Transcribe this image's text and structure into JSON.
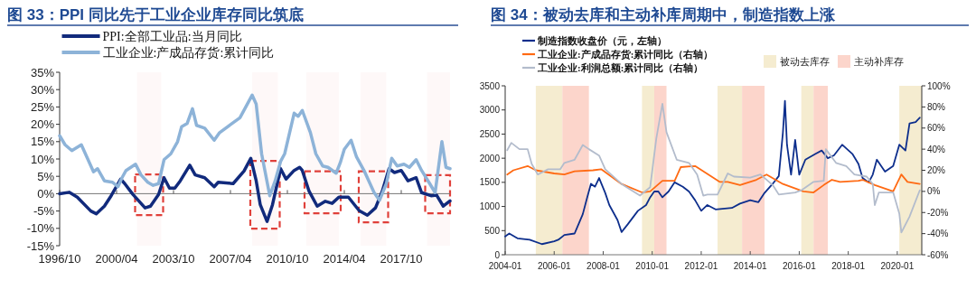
{
  "chart_data": [
    {
      "type": "line",
      "title": "图 33：PPI 同比先于工业企业库存同比筑底",
      "legend": "top",
      "xlim": [
        "1996-10",
        "2020-10"
      ],
      "xticks": [
        {
          "value": "1996-10",
          "label": "1996/10"
        },
        {
          "value": "2000-04",
          "label": "2000/04"
        },
        {
          "value": "2003-10",
          "label": "2003/10"
        },
        {
          "value": "2007-04",
          "label": "2007/04"
        },
        {
          "value": "2010-10",
          "label": "2010/10"
        },
        {
          "value": "2014-04",
          "label": "2014/04"
        },
        {
          "value": "2017-10",
          "label": "2017/10"
        }
      ],
      "ylim": [
        -15,
        35
      ],
      "yticks": [
        {
          "value": -15,
          "label": "-15%"
        },
        {
          "value": -10,
          "label": "-10%"
        },
        {
          "value": -5,
          "label": "-5%"
        },
        {
          "value": 0,
          "label": "0%"
        },
        {
          "value": 5,
          "label": "5%"
        },
        {
          "value": 10,
          "label": "10%"
        },
        {
          "value": 15,
          "label": "15%"
        },
        {
          "value": 20,
          "label": "20%"
        },
        {
          "value": 25,
          "label": "25%"
        },
        {
          "value": 30,
          "label": "30%"
        },
        {
          "value": 35,
          "label": "35%"
        }
      ],
      "series": [
        {
          "name": "PPI:全部工业品:当月同比",
          "color": "#112a7c",
          "x": [
            "1996-10",
            "1997-05",
            "1997-11",
            "1998-09",
            "1999-01",
            "1999-07",
            "1999-12",
            "2000-07",
            "2000-10",
            "2001-04",
            "2002-01",
            "2002-05",
            "2002-11",
            "2003-03",
            "2003-07",
            "2003-11",
            "2004-03",
            "2004-10",
            "2005-02",
            "2005-09",
            "2006-04",
            "2006-07",
            "2007-06",
            "2008-02",
            "2008-07",
            "2008-11",
            "2009-02",
            "2009-07",
            "2009-11",
            "2010-05",
            "2010-09",
            "2011-03",
            "2011-07",
            "2011-09",
            "2012-02",
            "2012-08",
            "2013-02",
            "2013-07",
            "2013-12",
            "2014-07",
            "2015-03",
            "2015-09",
            "2016-03",
            "2016-08",
            "2017-01",
            "2017-05",
            "2017-10",
            "2018-03",
            "2018-09",
            "2019-01",
            "2019-08",
            "2019-12",
            "2020-05",
            "2020-10"
          ],
          "values": [
            0,
            0.4,
            -1,
            -5,
            -5.8,
            -3.6,
            -0.6,
            4.2,
            2.9,
            -0.2,
            -4.1,
            -3.6,
            -0.2,
            4.6,
            1.6,
            1.6,
            3.7,
            8.2,
            5.4,
            4.6,
            2.0,
            3.3,
            2.9,
            6.5,
            10.2,
            3.7,
            -3.2,
            -8.0,
            -3.2,
            7.2,
            4.2,
            6.7,
            7.6,
            6.7,
            0.7,
            -3.6,
            -2.2,
            -2.8,
            -1.0,
            -1.0,
            -4.9,
            -6.2,
            -4.1,
            0.7,
            7.2,
            6.1,
            6.7,
            3.7,
            4.6,
            0.3,
            -0.6,
            -0.4,
            -3.6,
            -2.1
          ]
        },
        {
          "name": "工业企业:产成品存货:累计同比",
          "color": "#8db3d8",
          "x": [
            "1996-10",
            "1997-02",
            "1997-07",
            "1998-02",
            "1998-05",
            "1998-11",
            "1999-02",
            "1999-07",
            "2000-01",
            "2000-05",
            "2000-08",
            "2000-11",
            "2001-06",
            "2001-10",
            "2002-03",
            "2002-07",
            "2002-11",
            "2003-03",
            "2003-08",
            "2004-01",
            "2004-04",
            "2004-08",
            "2004-12",
            "2005-03",
            "2005-09",
            "2006-04",
            "2006-08",
            "2007-05",
            "2007-11",
            "2008-08",
            "2008-11",
            "2009-03",
            "2009-09",
            "2010-01",
            "2010-05",
            "2010-08",
            "2011-03",
            "2011-06",
            "2011-09",
            "2012-03",
            "2012-07",
            "2012-12",
            "2013-04",
            "2013-10",
            "2014-01",
            "2014-04",
            "2014-09",
            "2015-01",
            "2015-07",
            "2016-02",
            "2016-06",
            "2016-11",
            "2017-03",
            "2017-07",
            "2017-12",
            "2018-04",
            "2018-09",
            "2019-01",
            "2019-07",
            "2019-11",
            "2020-04",
            "2020-07",
            "2020-10"
          ],
          "values": [
            16.7,
            14.1,
            12.4,
            14.1,
            11.5,
            6.3,
            7.2,
            3.7,
            3.3,
            2.0,
            4.6,
            6.7,
            8.5,
            5.4,
            3.3,
            2.4,
            2.9,
            9.8,
            11.5,
            15.0,
            19.3,
            20.2,
            24.5,
            19.7,
            18.9,
            15.4,
            17.6,
            20.2,
            21.9,
            28.4,
            25.8,
            11.5,
            -0.6,
            3.7,
            9.3,
            11.5,
            23.2,
            22.3,
            24.0,
            17.6,
            11.5,
            8.0,
            7.6,
            5.9,
            8.9,
            12.8,
            15.4,
            10.6,
            6.3,
            0.3,
            -1.9,
            2.9,
            10.2,
            8.0,
            8.5,
            7.6,
            9.8,
            6.7,
            2.9,
            0.3,
            15.0,
            7.6,
            7.2
          ]
        }
      ],
      "bands": [
        {
          "axis": "x",
          "from": "2001-07",
          "to": "2003-01",
          "color": "#e0403a"
        },
        {
          "axis": "x",
          "from": "2008-08",
          "to": "2010-03",
          "color": "#e0403a"
        },
        {
          "axis": "x",
          "from": "2011-12",
          "to": "2013-12",
          "color": "#e0403a"
        },
        {
          "axis": "x",
          "from": "2015-04",
          "to": "2016-11",
          "color": "#e0403a"
        },
        {
          "axis": "x",
          "from": "2019-05",
          "to": "2020-10",
          "color": "#e0403a"
        }
      ]
    },
    {
      "type": "line",
      "title": "图 34：被动去库和主动补库周期中，制造指数上涨",
      "legend": "top left",
      "xlim": [
        "2004-01",
        "2021-01"
      ],
      "xticks": [
        {
          "value": "2004-01",
          "label": "2004-01"
        },
        {
          "value": "2006-01",
          "label": "2006-01"
        },
        {
          "value": "2008-01",
          "label": "2008-01"
        },
        {
          "value": "2010-01",
          "label": "2010-01"
        },
        {
          "value": "2012-01",
          "label": "2012-01"
        },
        {
          "value": "2014-01",
          "label": "2014-01"
        },
        {
          "value": "2016-01",
          "label": "2016-01"
        },
        {
          "value": "2018-01",
          "label": "2018-01"
        },
        {
          "value": "2020-01",
          "label": "2020-01"
        }
      ],
      "ylim": [
        0,
        3500
      ],
      "yticks": [
        0,
        500,
        1000,
        1500,
        2000,
        2500,
        3000,
        3500
      ],
      "y2lim": [
        -60,
        100
      ],
      "y2ticks": [
        {
          "value": -60,
          "label": "-60%"
        },
        {
          "value": -40,
          "label": "-40%"
        },
        {
          "value": -20,
          "label": "-20%"
        },
        {
          "value": 0,
          "label": "0%"
        },
        {
          "value": 20,
          "label": "20%"
        },
        {
          "value": 40,
          "label": "40%"
        },
        {
          "value": 60,
          "label": "60%"
        },
        {
          "value": 80,
          "label": "80%"
        },
        {
          "value": 100,
          "label": "100%"
        }
      ],
      "bands": [
        {
          "axis": "x",
          "from": "2005-04",
          "to": "2006-05",
          "label": "被动去库存",
          "color": "#f5ecd0"
        },
        {
          "axis": "x",
          "from": "2006-05",
          "to": "2007-06",
          "label": "主动补库存",
          "color": "#fcd5cb"
        },
        {
          "axis": "x",
          "from": "2009-08",
          "to": "2010-02",
          "color": "#f5ecd0"
        },
        {
          "axis": "x",
          "from": "2010-02",
          "to": "2010-08",
          "color": "#fcd5cb"
        },
        {
          "axis": "x",
          "from": "2012-09",
          "to": "2013-09",
          "color": "#f5ecd0"
        },
        {
          "axis": "x",
          "from": "2013-09",
          "to": "2014-08",
          "color": "#fcd5cb"
        },
        {
          "axis": "x",
          "from": "2016-02",
          "to": "2016-08",
          "color": "#f5ecd0"
        },
        {
          "axis": "x",
          "from": "2016-08",
          "to": "2017-03",
          "color": "#fcd5cb"
        },
        {
          "axis": "x",
          "from": "2020-02",
          "to": "2021-01",
          "color": "#f5ecd0"
        }
      ],
      "series": [
        {
          "name": "制造指数收盘价（元，左轴）",
          "color": "#0d2e8c",
          "x": [
            "2004-01",
            "2004-03",
            "2004-07",
            "2005-01",
            "2005-07",
            "2006-01",
            "2006-03",
            "2006-06",
            "2006-11",
            "2007-03",
            "2007-05",
            "2007-07",
            "2007-09",
            "2007-11",
            "2008-02",
            "2008-04",
            "2008-08",
            "2008-10",
            "2009-01",
            "2009-06",
            "2009-10",
            "2009-12",
            "2010-02",
            "2010-04",
            "2010-06",
            "2010-09",
            "2010-12",
            "2011-04",
            "2011-07",
            "2011-10",
            "2012-01",
            "2012-04",
            "2012-08",
            "2013-04",
            "2013-08",
            "2014-01",
            "2014-05",
            "2014-08",
            "2014-12",
            "2015-03",
            "2015-05",
            "2015-06",
            "2015-07",
            "2015-09",
            "2015-11",
            "2016-01",
            "2016-04",
            "2016-09",
            "2016-12",
            "2017-03",
            "2017-06",
            "2017-10",
            "2018-03",
            "2018-06",
            "2018-08",
            "2018-11",
            "2019-01",
            "2019-03",
            "2019-07",
            "2019-11",
            "2020-02",
            "2020-05",
            "2020-07",
            "2020-10",
            "2020-12"
          ],
          "values": [
            380,
            440,
            340,
            310,
            220,
            280,
            310,
            410,
            440,
            840,
            1160,
            1470,
            1410,
            1590,
            1280,
            1030,
            720,
            470,
            630,
            910,
            1030,
            1190,
            1310,
            1310,
            1190,
            1310,
            1500,
            1410,
            1310,
            1130,
            910,
            1030,
            940,
            970,
            1060,
            1130,
            1090,
            1280,
            1470,
            1630,
            2530,
            3190,
            2280,
            1660,
            2380,
            1660,
            1970,
            2090,
            2160,
            2000,
            2060,
            2280,
            2090,
            1880,
            1590,
            1500,
            1660,
            1970,
            1720,
            1840,
            2280,
            2160,
            2720,
            2750,
            2840
          ]
        },
        {
          "name": "工业企业:产成品存货:累计同比（右轴）",
          "color": "#ff6a13",
          "axis": "y2",
          "x": [
            "2004-02",
            "2004-05",
            "2004-12",
            "2005-04",
            "2006-01",
            "2006-06",
            "2006-11",
            "2007-08",
            "2007-12",
            "2008-10",
            "2009-08",
            "2009-12",
            "2010-06",
            "2010-12",
            "2011-03",
            "2011-10",
            "2012-10",
            "2013-02",
            "2013-08",
            "2014-04",
            "2014-09",
            "2015-05",
            "2016-03",
            "2016-08",
            "2017-01",
            "2017-05",
            "2017-09",
            "2018-06",
            "2018-08",
            "2019-02",
            "2019-11",
            "2020-03",
            "2020-06",
            "2020-12"
          ],
          "values": [
            16,
            20,
            24,
            20,
            17,
            16,
            19,
            20,
            21,
            7,
            -1,
            0,
            10,
            10,
            23,
            24,
            9,
            9,
            6,
            11,
            16,
            7,
            0,
            -1,
            6,
            11,
            9,
            10,
            11,
            6,
            0,
            16,
            9,
            7
          ]
        },
        {
          "name": "工业企业:利润总额:累计同比（右轴）",
          "color": "#b3bccc",
          "axis": "y2",
          "x": [
            "2004-02",
            "2004-04",
            "2004-08",
            "2004-12",
            "2005-02",
            "2005-05",
            "2005-10",
            "2006-04",
            "2006-06",
            "2006-11",
            "2007-03",
            "2007-06",
            "2007-11",
            "2008-02",
            "2008-10",
            "2009-07",
            "2009-12",
            "2010-03",
            "2010-06",
            "2010-08",
            "2011-01",
            "2011-07",
            "2011-11",
            "2012-02",
            "2012-04",
            "2012-09",
            "2013-02",
            "2013-05",
            "2014-01",
            "2014-06",
            "2014-12",
            "2015-03",
            "2015-11",
            "2016-02",
            "2016-08",
            "2017-01",
            "2017-02",
            "2017-07",
            "2017-12",
            "2018-04",
            "2018-10",
            "2019-01",
            "2019-02",
            "2019-04",
            "2019-11",
            "2020-02",
            "2020-03",
            "2020-07",
            "2020-12"
          ],
          "values": [
            39,
            46,
            40,
            40,
            26,
            16,
            21,
            21,
            27,
            30,
            44,
            40,
            34,
            21,
            7,
            -4,
            4,
            50,
            83,
            56,
            30,
            27,
            16,
            -4,
            -3,
            -3,
            17,
            14,
            13,
            16,
            6,
            -3,
            -1,
            1,
            9,
            10,
            40,
            27,
            24,
            16,
            14,
            7,
            -13,
            -1,
            -1,
            -21,
            -39,
            -24,
            1
          ]
        }
      ]
    }
  ]
}
